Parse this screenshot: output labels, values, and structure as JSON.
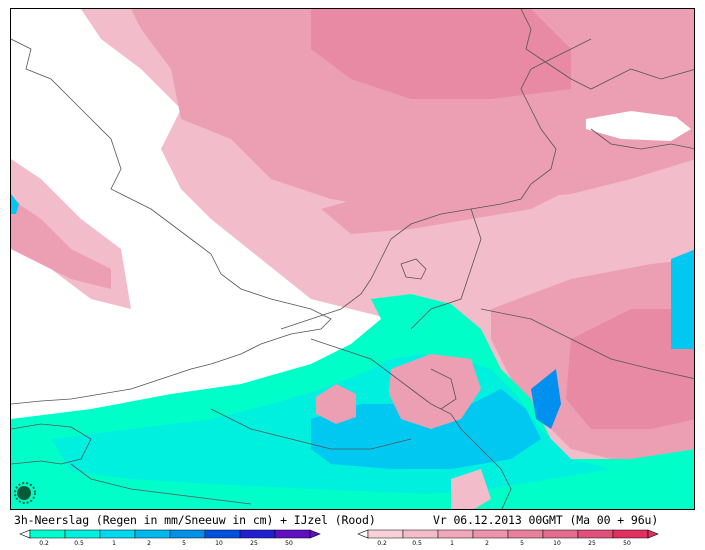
{
  "caption": {
    "left": "3h-Neerslag (Regen in mm/Sneeuw in cm) + IJzel (Rood)",
    "right": "Vr 06.12.2013 00GMT (Ma 00 + 96u)"
  },
  "legend_rain_snow": {
    "labels": [
      "0.2",
      "0.5",
      "1",
      "2",
      "5",
      "10",
      "25",
      "50"
    ],
    "colors": [
      "#00ffcc",
      "#00f0e0",
      "#00d8f0",
      "#00b8f0",
      "#0090e8",
      "#0050e0",
      "#2020d0",
      "#6010c0"
    ]
  },
  "legend_freezing_rain": {
    "labels": [
      "0.2",
      "0.5",
      "1",
      "2",
      "5",
      "10",
      "25",
      "50"
    ],
    "colors": [
      "#f8d0d8",
      "#f4bcc8",
      "#f0a8bc",
      "#ec94ac",
      "#e8809c",
      "#e46c8c",
      "#e0507a",
      "#e03060"
    ]
  },
  "map_colors": {
    "pink_light": "#f2bccb",
    "pink_mid": "#ec9fb3",
    "pink_dark": "#e88aa3",
    "cyan": "#00f0e0",
    "aqua": "#00ffc8",
    "blue": "#00c8f0",
    "blue_dark": "#0090f0"
  },
  "logo_icon": "sun-logo-icon"
}
